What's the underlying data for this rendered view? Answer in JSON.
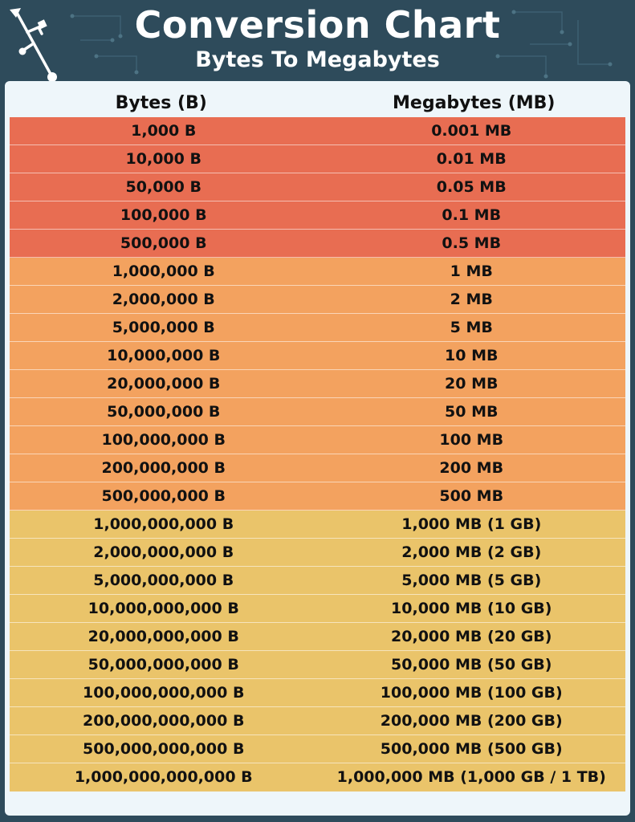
{
  "header": {
    "title": "Conversion Chart",
    "subtitle": "Bytes To Megabytes"
  },
  "table": {
    "columns": [
      "Bytes (B)",
      "Megabytes (MB)"
    ],
    "rows": [
      {
        "bytes": "1,000 B",
        "mb": "0.001 MB",
        "band": "red"
      },
      {
        "bytes": "10,000 B",
        "mb": "0.01 MB",
        "band": "red"
      },
      {
        "bytes": "50,000 B",
        "mb": "0.05 MB",
        "band": "red"
      },
      {
        "bytes": "100,000 B",
        "mb": "0.1 MB",
        "band": "red"
      },
      {
        "bytes": "500,000 B",
        "mb": "0.5 MB",
        "band": "red"
      },
      {
        "bytes": "1,000,000 B",
        "mb": "1 MB",
        "band": "orange"
      },
      {
        "bytes": "2,000,000 B",
        "mb": "2 MB",
        "band": "orange"
      },
      {
        "bytes": "5,000,000 B",
        "mb": "5 MB",
        "band": "orange"
      },
      {
        "bytes": "10,000,000 B",
        "mb": "10 MB",
        "band": "orange"
      },
      {
        "bytes": "20,000,000 B",
        "mb": "20 MB",
        "band": "orange"
      },
      {
        "bytes": "50,000,000 B",
        "mb": "50 MB",
        "band": "orange"
      },
      {
        "bytes": "100,000,000 B",
        "mb": "100 MB",
        "band": "orange"
      },
      {
        "bytes": "200,000,000 B",
        "mb": "200 MB",
        "band": "orange"
      },
      {
        "bytes": "500,000,000 B",
        "mb": "500 MB",
        "band": "orange"
      },
      {
        "bytes": "1,000,000,000 B",
        "mb": "1,000 MB (1 GB)",
        "band": "yellow"
      },
      {
        "bytes": "2,000,000,000 B",
        "mb": "2,000 MB (2 GB)",
        "band": "yellow"
      },
      {
        "bytes": "5,000,000,000 B",
        "mb": "5,000 MB (5 GB)",
        "band": "yellow"
      },
      {
        "bytes": "10,000,000,000 B",
        "mb": "10,000 MB (10 GB)",
        "band": "yellow"
      },
      {
        "bytes": "20,000,000,000 B",
        "mb": "20,000 MB (20 GB)",
        "band": "yellow"
      },
      {
        "bytes": "50,000,000,000 B",
        "mb": "50,000 MB (50 GB)",
        "band": "yellow"
      },
      {
        "bytes": "100,000,000,000 B",
        "mb": "100,000 MB (100 GB)",
        "band": "yellow"
      },
      {
        "bytes": "200,000,000,000 B",
        "mb": "200,000 MB (200 GB)",
        "band": "yellow"
      },
      {
        "bytes": "500,000,000,000 B",
        "mb": "500,000 MB (500 GB)",
        "band": "yellow"
      },
      {
        "bytes": "1,000,000,000,000 B",
        "mb": "1,000,000 MB (1,000 GB / 1 TB)",
        "band": "yellow"
      }
    ]
  },
  "colors": {
    "background": "#2e4b5b",
    "card": "#eef6fa",
    "red_band": "#e86d52",
    "orange_band": "#f3a25f",
    "yellow_band": "#eac46a"
  },
  "icons": {
    "logo": "usb-icon"
  }
}
